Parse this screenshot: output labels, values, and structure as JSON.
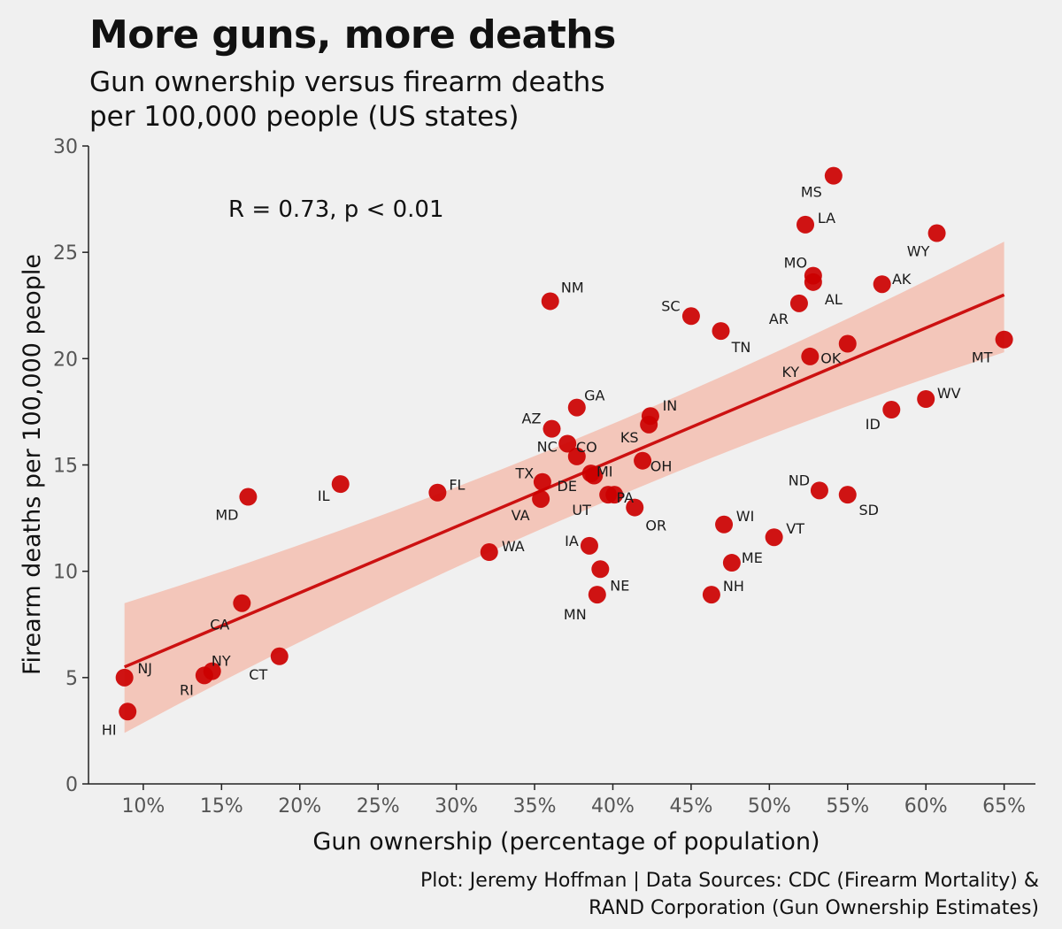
{
  "header": {
    "title": "More guns, more deaths",
    "subtitle_line1": "Gun ownership versus firearm deaths",
    "subtitle_line2": "per 100,000 people (US states)"
  },
  "caption": {
    "line1": "Plot: Jeremy Hoffman | Data Sources: CDC (Firearm Mortality) &",
    "line2": "RAND Corporation (Gun Ownership Estimates)"
  },
  "colors": {
    "background": "#f0f0f0",
    "point": "#cc0000",
    "trend_line": "#cc1111",
    "ribbon": "#f4b8a8",
    "axis": "#222222"
  },
  "chart_data": {
    "type": "scatter",
    "title": "More guns, more deaths",
    "subtitle": "Gun ownership versus firearm deaths per 100,000 people (US states)",
    "xlabel": "Gun ownership (percentage of population)",
    "ylabel": "Firearm deaths per 100,000 people",
    "xlim": [
      6.5,
      67
    ],
    "ylim": [
      0,
      30
    ],
    "x_ticks": [
      10,
      15,
      20,
      25,
      30,
      35,
      40,
      45,
      50,
      55,
      60,
      65
    ],
    "x_tick_labels": [
      "10%",
      "15%",
      "20%",
      "25%",
      "30%",
      "35%",
      "40%",
      "45%",
      "50%",
      "55%",
      "60%",
      "65%"
    ],
    "y_ticks": [
      0,
      5,
      10,
      15,
      20,
      25,
      30
    ],
    "y_tick_labels": [
      "0",
      "5",
      "10",
      "15",
      "20",
      "25",
      "30"
    ],
    "grid": false,
    "annotation": "R = 0.73, p < 0.01",
    "trend": {
      "x_start": 8.8,
      "y_start": 5.5,
      "x_end": 65.0,
      "y_end": 23.0,
      "ci_start": [
        2.4,
        8.5
      ],
      "ci_mid": [
        13.6,
        15.0
      ],
      "ci_end": [
        20.3,
        25.5
      ],
      "x_mid": 37.0
    },
    "points": [
      {
        "label": "MS",
        "x": 54.1,
        "y": 28.6,
        "lx": -25,
        "ly": 18
      },
      {
        "label": "LA",
        "x": 52.3,
        "y": 26.3,
        "lx": 24,
        "ly": -8
      },
      {
        "label": "WY",
        "x": 60.7,
        "y": 25.9,
        "lx": -21,
        "ly": 20
      },
      {
        "label": "MO",
        "x": 52.8,
        "y": 23.9,
        "lx": -20,
        "ly": -15
      },
      {
        "label": "AL",
        "x": 52.8,
        "y": 23.6,
        "lx": 23,
        "ly": 19
      },
      {
        "label": "AK",
        "x": 57.2,
        "y": 23.5,
        "lx": 22,
        "ly": -6
      },
      {
        "label": "NM",
        "x": 36.0,
        "y": 22.7,
        "lx": 25,
        "ly": -16
      },
      {
        "label": "SC",
        "x": 45.0,
        "y": 22.0,
        "lx": -23,
        "ly": -12
      },
      {
        "label": "AR",
        "x": 51.9,
        "y": 22.6,
        "lx": -23,
        "ly": 17
      },
      {
        "label": "TN",
        "x": 46.9,
        "y": 21.3,
        "lx": 23,
        "ly": 18
      },
      {
        "label": "MT",
        "x": 65.0,
        "y": 20.9,
        "lx": -25,
        "ly": 20
      },
      {
        "label": "OK",
        "x": 55.0,
        "y": 20.7,
        "lx": -19,
        "ly": 16
      },
      {
        "label": "KY",
        "x": 52.6,
        "y": 20.1,
        "lx": -22,
        "ly": 17
      },
      {
        "label": "GA",
        "x": 37.7,
        "y": 17.7,
        "lx": 20,
        "ly": -14
      },
      {
        "label": "WV",
        "x": 60.0,
        "y": 18.1,
        "lx": 26,
        "ly": -7
      },
      {
        "label": "ID",
        "x": 57.8,
        "y": 17.6,
        "lx": -21,
        "ly": 16
      },
      {
        "label": "IN",
        "x": 42.4,
        "y": 17.3,
        "lx": 22,
        "ly": -12
      },
      {
        "label": "AZ",
        "x": 36.1,
        "y": 16.7,
        "lx": -23,
        "ly": -12
      },
      {
        "label": "KS",
        "x": 42.3,
        "y": 16.9,
        "lx": -22,
        "ly": 14
      },
      {
        "label": "NC",
        "x": 37.1,
        "y": 16.0,
        "lx": -23,
        "ly": 3
      },
      {
        "label": "CO",
        "x": 37.7,
        "y": 15.4,
        "lx": 11,
        "ly": -11
      },
      {
        "label": "OH",
        "x": 41.9,
        "y": 15.2,
        "lx": 21,
        "ly": 6
      },
      {
        "label": "MI",
        "x": 38.8,
        "y": 14.5,
        "lx": 12,
        "ly": -5
      },
      {
        "label": "TX",
        "x": 35.5,
        "y": 14.2,
        "lx": -20,
        "ly": -10
      },
      {
        "label": "DE",
        "x": 38.6,
        "y": 14.6,
        "lx": -27,
        "ly": 14
      },
      {
        "label": "PA",
        "x": 40.1,
        "y": 13.6,
        "lx": 12,
        "ly": 3
      },
      {
        "label": "UT",
        "x": 39.7,
        "y": 13.6,
        "lx": -30,
        "ly": 17
      },
      {
        "label": "VA",
        "x": 35.4,
        "y": 13.4,
        "lx": -23,
        "ly": 18
      },
      {
        "label": "IL",
        "x": 22.6,
        "y": 14.1,
        "lx": -19,
        "ly": 13
      },
      {
        "label": "FL",
        "x": 28.8,
        "y": 13.7,
        "lx": 22,
        "ly": -9
      },
      {
        "label": "MD",
        "x": 16.7,
        "y": 13.5,
        "lx": -24,
        "ly": 20
      },
      {
        "label": "OR",
        "x": 41.4,
        "y": 13.0,
        "lx": 24,
        "ly": 20
      },
      {
        "label": "ND",
        "x": 53.2,
        "y": 13.8,
        "lx": -23,
        "ly": -12
      },
      {
        "label": "SD",
        "x": 55.0,
        "y": 13.6,
        "lx": 24,
        "ly": 17
      },
      {
        "label": "WI",
        "x": 47.1,
        "y": 12.2,
        "lx": 24,
        "ly": -10
      },
      {
        "label": "VT",
        "x": 50.3,
        "y": 11.6,
        "lx": 24,
        "ly": -10
      },
      {
        "label": "IA",
        "x": 38.5,
        "y": 11.2,
        "lx": -20,
        "ly": -6
      },
      {
        "label": "WA",
        "x": 32.1,
        "y": 10.9,
        "lx": 27,
        "ly": -7
      },
      {
        "label": "ME",
        "x": 47.6,
        "y": 10.4,
        "lx": 23,
        "ly": -6
      },
      {
        "label": "NE",
        "x": 39.2,
        "y": 10.1,
        "lx": 22,
        "ly": 18
      },
      {
        "label": "NH",
        "x": 46.3,
        "y": 8.9,
        "lx": 25,
        "ly": -10
      },
      {
        "label": "MN",
        "x": 39.0,
        "y": 8.9,
        "lx": -25,
        "ly": 22
      },
      {
        "label": "CA",
        "x": 16.3,
        "y": 8.5,
        "lx": -25,
        "ly": 24
      },
      {
        "label": "CT",
        "x": 18.7,
        "y": 6.0,
        "lx": -24,
        "ly": 20
      },
      {
        "label": "NJ",
        "x": 8.8,
        "y": 5.0,
        "lx": 23,
        "ly": -11
      },
      {
        "label": "NY",
        "x": 14.4,
        "y": 5.3,
        "lx": 10,
        "ly": -12
      },
      {
        "label": "RI",
        "x": 13.9,
        "y": 5.1,
        "lx": -20,
        "ly": 16
      },
      {
        "label": "HI",
        "x": 9.0,
        "y": 3.4,
        "lx": -21,
        "ly": 20
      }
    ]
  }
}
